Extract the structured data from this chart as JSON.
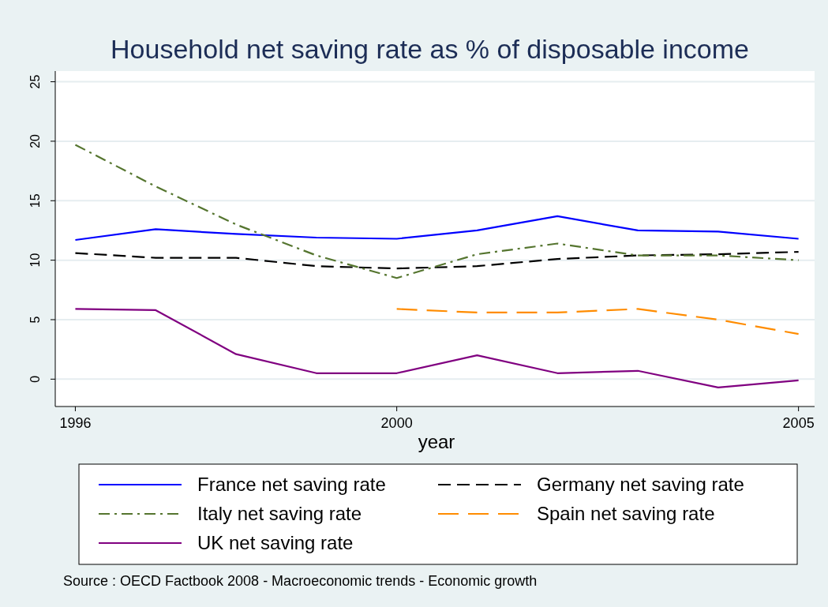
{
  "chart_data": {
    "type": "line",
    "title": "Household net saving rate as % of disposable income",
    "xlabel": "year",
    "x": [
      1996,
      1997,
      1998,
      1999,
      2000,
      2001,
      2002,
      2003,
      2004,
      2005
    ],
    "xlim": [
      1995.75,
      2005.2
    ],
    "xticks": [
      1996,
      2000,
      2005
    ],
    "ylim": [
      -2.3,
      25.9
    ],
    "yticks": [
      0,
      5,
      10,
      15,
      20,
      25
    ],
    "grid": "y",
    "legend": "bottom",
    "marker": "none",
    "series": [
      {
        "name": "France net saving rate",
        "color": "#0000ff",
        "line_style": "solid",
        "values": [
          11.7,
          12.6,
          12.2,
          11.9,
          11.8,
          12.5,
          13.7,
          12.5,
          12.4,
          11.8
        ]
      },
      {
        "name": "Germany net saving rate",
        "color": "#000000",
        "line_style": "dashed",
        "values": [
          10.6,
          10.2,
          10.2,
          9.5,
          9.3,
          9.5,
          10.1,
          10.4,
          10.5,
          10.7
        ]
      },
      {
        "name": "Italy net saving rate",
        "color": "#55752f",
        "line_style": "dashdot",
        "values": [
          19.7,
          16.2,
          13.0,
          10.4,
          8.5,
          10.5,
          11.4,
          10.4,
          10.4,
          10.0
        ]
      },
      {
        "name": "Spain net saving rate",
        "color": "#ff8c00",
        "line_style": "longdash",
        "values": [
          null,
          null,
          null,
          null,
          5.9,
          5.6,
          5.6,
          5.9,
          5.0,
          3.8
        ]
      },
      {
        "name": "UK net saving rate",
        "color": "#800080",
        "line_style": "solid",
        "values": [
          5.9,
          5.8,
          2.1,
          0.5,
          0.5,
          2.0,
          0.5,
          0.7,
          -0.7,
          -0.1
        ]
      }
    ],
    "annotations": [
      "Source : OECD Factbook 2008 - Macroeconomic trends - Economic growth"
    ]
  }
}
